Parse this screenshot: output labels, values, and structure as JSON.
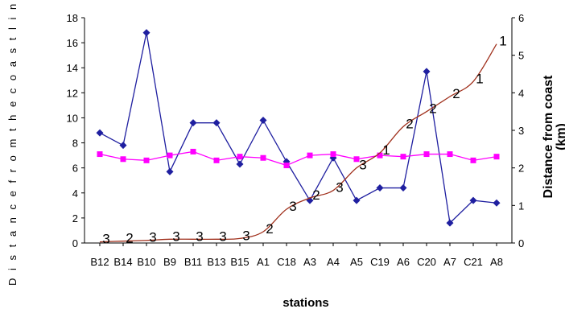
{
  "chart_data": {
    "type": "line",
    "categories": [
      "B12",
      "B14",
      "B10",
      "B9",
      "B11",
      "B13",
      "B15",
      "A1",
      "C18",
      "A3",
      "A4",
      "A5",
      "C19",
      "A6",
      "C20",
      "A7",
      "C21",
      "A8"
    ],
    "xlabel": "stations",
    "ylabel_left": "D i s t a n c e   f r o m   t h e   c o a s t l i n e",
    "ylabel_right_line1": "Distance from coast",
    "ylabel_right_line2": "(km)",
    "y_left": {
      "min": 0,
      "max": 18,
      "step": 2,
      "ticks": [
        "0",
        "2",
        "4",
        "6",
        "8",
        "10",
        "12",
        "14",
        "16",
        "18"
      ]
    },
    "y_right": {
      "min": 0,
      "max": 6,
      "step": 1,
      "ticks": [
        "0",
        "1",
        "2",
        "3",
        "4",
        "5",
        "6"
      ]
    },
    "grid": false,
    "series": [
      {
        "axis": "left",
        "color": "#1f1fa0",
        "marker": "diamond",
        "values": [
          8.8,
          7.8,
          16.8,
          5.7,
          9.6,
          9.6,
          6.3,
          9.8,
          6.5,
          3.4,
          6.8,
          3.4,
          4.4,
          4.4,
          13.7,
          1.6,
          3.4,
          3.2
        ]
      },
      {
        "axis": "left",
        "color": "#ff00ff",
        "marker": "square",
        "values": [
          7.1,
          6.7,
          6.6,
          7.0,
          7.3,
          6.6,
          6.9,
          6.8,
          6.2,
          7.0,
          7.1,
          6.7,
          7.0,
          6.9,
          7.1,
          7.1,
          6.6,
          6.9
        ]
      },
      {
        "axis": "right",
        "color": "#a0301c",
        "marker": "none",
        "values": [
          0.03,
          0.05,
          0.07,
          0.1,
          0.1,
          0.1,
          0.12,
          0.3,
          0.9,
          1.2,
          1.4,
          2.0,
          2.4,
          3.1,
          3.5,
          3.9,
          4.3,
          5.3
        ]
      }
    ],
    "point_labels": [
      "3",
      "2",
      "3",
      "3",
      "3",
      "3",
      "3",
      "2",
      "3",
      "2",
      "3",
      "3",
      "1",
      "2",
      "2",
      "2",
      "1",
      "1"
    ]
  }
}
